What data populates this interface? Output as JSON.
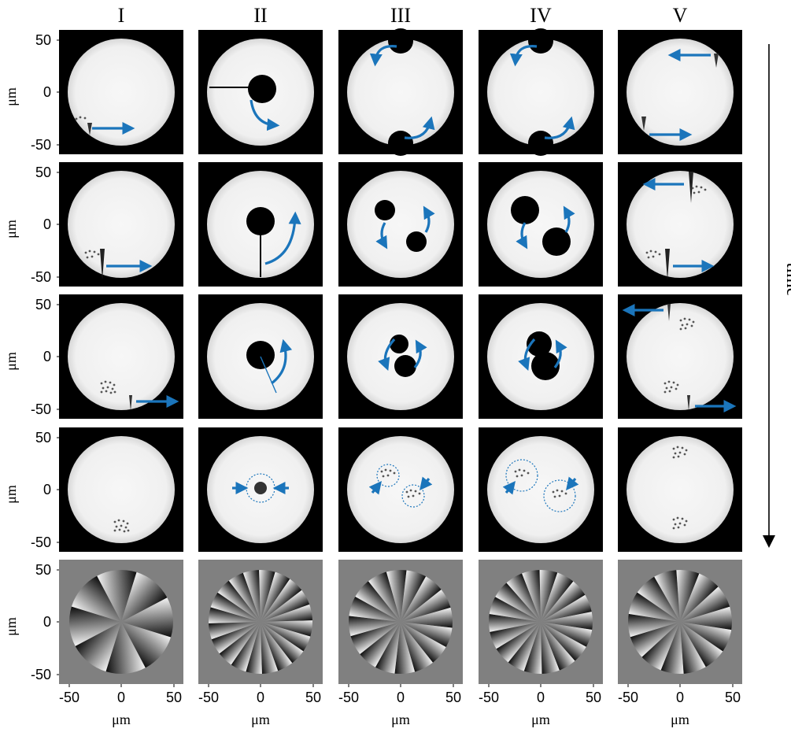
{
  "figure": {
    "columns": [
      "I",
      "II",
      "III",
      "IV",
      "V"
    ],
    "y_tick_labels": [
      "50",
      "0",
      "-50"
    ],
    "x_tick_labels": [
      "-50",
      "0",
      "50"
    ],
    "axis_unit": "μm",
    "time_label": "time"
  },
  "colors": {
    "arrow": "#1b75bb",
    "background_dark": "#000000",
    "background_phase": "#808080",
    "disk": "#f2f2f2"
  }
}
